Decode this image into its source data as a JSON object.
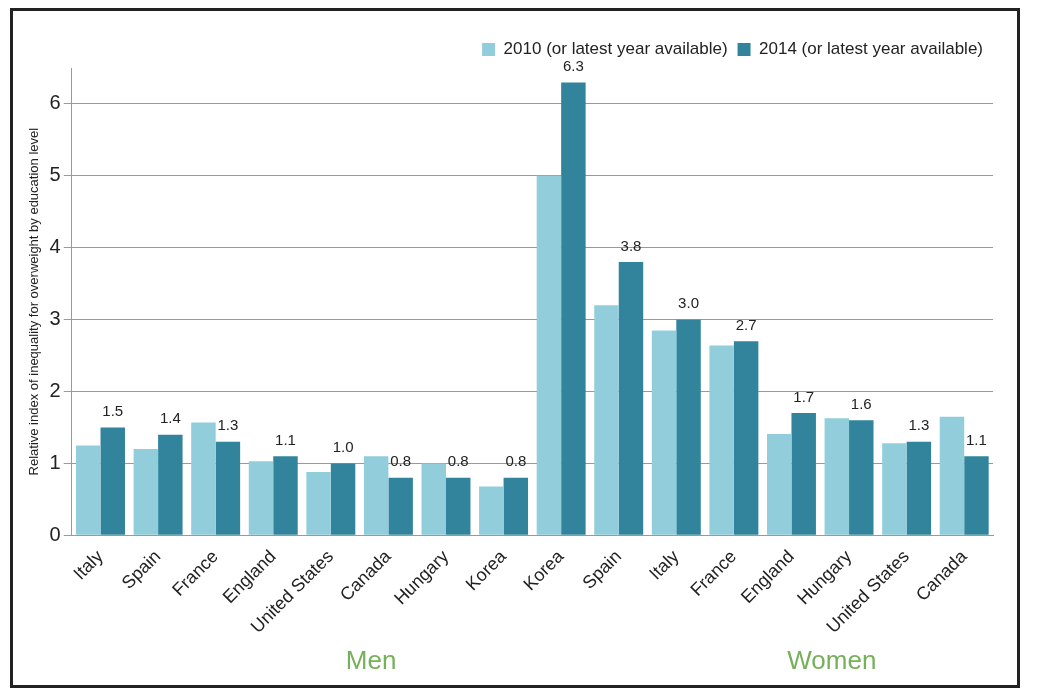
{
  "chart_data": {
    "type": "bar",
    "ylabel": "Relative index of inequality for overweight by education level",
    "categories": [
      "Italy",
      "Spain",
      "France",
      "England",
      "United States",
      "Canada",
      "Hungary",
      "Korea",
      "Korea",
      "Spain",
      "Italy",
      "France",
      "England",
      "Hungary",
      "United States",
      "Canada"
    ],
    "series": [
      {
        "name": "2010 (or latest year available)",
        "color": "#92cddc",
        "values": [
          1.25,
          1.2,
          1.57,
          1.03,
          0.88,
          1.1,
          1.0,
          0.68,
          5.0,
          3.2,
          2.85,
          2.64,
          1.41,
          1.63,
          1.28,
          1.65
        ]
      },
      {
        "name": "2014 (or latest year available)",
        "color": "#31849b",
        "values": [
          1.5,
          1.4,
          1.3,
          1.1,
          1.0,
          0.8,
          0.8,
          0.8,
          6.3,
          3.8,
          3.0,
          2.7,
          1.7,
          1.6,
          1.3,
          1.1
        ],
        "value_labels": [
          "1.5",
          "1.4",
          "1.3",
          "1.1",
          "1.0",
          "0.8",
          "0.8",
          "0.8",
          "6.3",
          "3.8",
          "3.0",
          "2.7",
          "1.7",
          "1.6",
          "1.3",
          "1.1"
        ]
      }
    ],
    "ylim": [
      0,
      6.5
    ],
    "yticks": [
      0,
      1,
      2,
      3,
      4,
      5,
      6
    ],
    "grid": "y",
    "legend": "top right",
    "annotations": [
      "Men",
      "Women"
    ]
  }
}
